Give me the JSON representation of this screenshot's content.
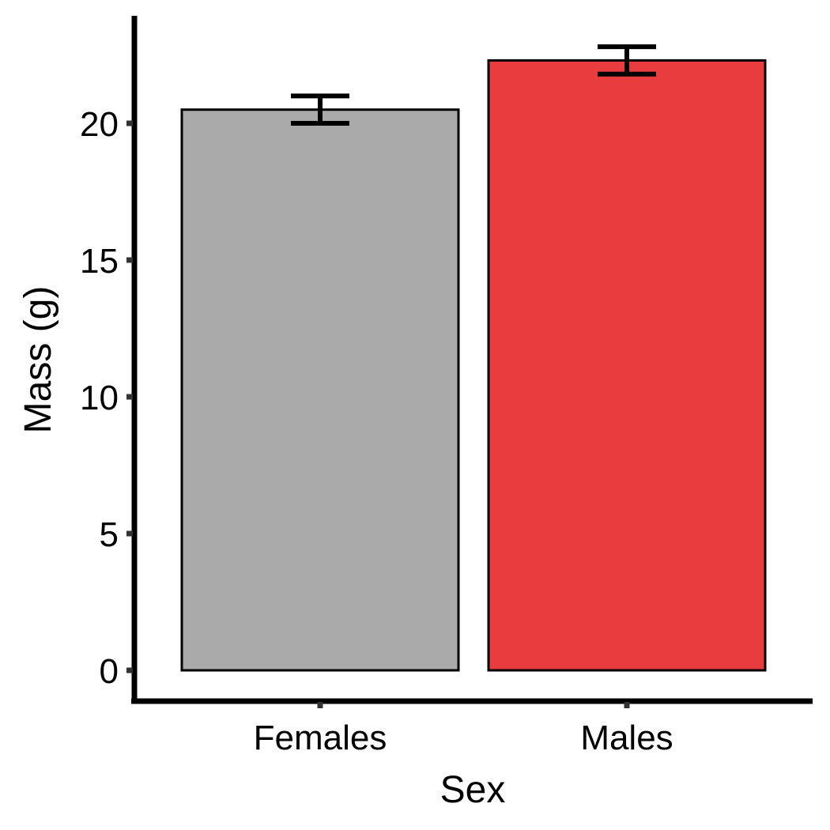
{
  "chart_data": {
    "type": "bar",
    "title": "",
    "xlabel": "Sex",
    "ylabel": "Mass (g)",
    "categories": [
      "Females",
      "Males"
    ],
    "values": [
      20.5,
      22.3
    ],
    "error": [
      0.5,
      0.5
    ],
    "colors": [
      "#aaaaaa",
      "#e83c3e"
    ],
    "ylim": [
      0,
      24
    ],
    "yticks": [
      0,
      5,
      10,
      15,
      20
    ],
    "grid": false,
    "legend": "none"
  }
}
